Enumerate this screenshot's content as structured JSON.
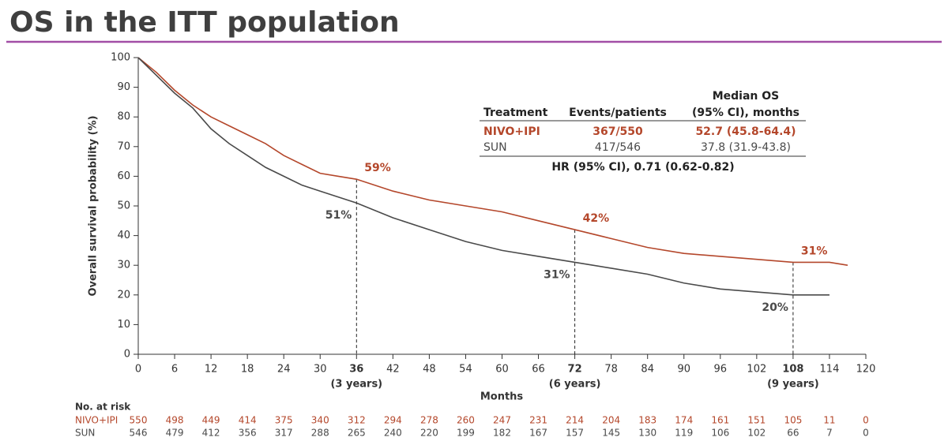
{
  "chart_data": {
    "type": "line",
    "title": "OS in the ITT population",
    "xlabel": "Months",
    "ylabel": "Overall survival probability (%)",
    "x": [
      0,
      3,
      6,
      9,
      12,
      15,
      18,
      21,
      24,
      27,
      30,
      33,
      36,
      42,
      48,
      54,
      60,
      66,
      72,
      78,
      84,
      90,
      96,
      102,
      108,
      114,
      117
    ],
    "series": [
      {
        "name": "NIVO+IPI",
        "color": "#b4472b",
        "values": [
          100,
          95,
          89,
          84,
          80,
          77,
          74,
          71,
          67,
          64,
          61,
          60,
          59,
          55,
          52,
          50,
          48,
          45,
          42,
          39,
          36,
          34,
          33,
          32,
          31,
          31,
          30
        ]
      },
      {
        "name": "SUN",
        "color": "#4a4a4a",
        "values": [
          100,
          94,
          88,
          83,
          76,
          71,
          67,
          63,
          60,
          57,
          55,
          53,
          51,
          46,
          42,
          38,
          35,
          33,
          31,
          29,
          27,
          24,
          22,
          21,
          20,
          20,
          null
        ]
      }
    ],
    "xlim": [
      0,
      120
    ],
    "ylim": [
      0,
      100
    ],
    "xticks": [
      0,
      6,
      12,
      18,
      24,
      30,
      36,
      42,
      48,
      54,
      60,
      66,
      72,
      78,
      84,
      90,
      96,
      102,
      108,
      114,
      120
    ],
    "yticks": [
      0,
      10,
      20,
      30,
      40,
      50,
      60,
      70,
      80,
      90,
      100
    ],
    "reference_lines": [
      {
        "x": 36,
        "label": "(3 years)"
      },
      {
        "x": 72,
        "label": "(6 years)"
      },
      {
        "x": 108,
        "label": "(9 years)"
      }
    ],
    "annotations": [
      {
        "text": "59%",
        "series": 0,
        "x": 36,
        "value": 59
      },
      {
        "text": "51%",
        "series": 1,
        "x": 36,
        "value": 51
      },
      {
        "text": "42%",
        "series": 0,
        "x": 72,
        "value": 42
      },
      {
        "text": "31%",
        "series": 1,
        "x": 72,
        "value": 31
      },
      {
        "text": "31%",
        "series": 0,
        "x": 108,
        "value": 31
      },
      {
        "text": "20%",
        "series": 1,
        "x": 108,
        "value": 20
      }
    ],
    "table": {
      "column_super": "Median OS",
      "columns": [
        "Treatment",
        "Events/patients",
        "(95% CI), months"
      ],
      "rows": [
        [
          "NIVO+IPI",
          "367/550",
          "52.7 (45.8-64.4)"
        ],
        [
          "SUN",
          "417/546",
          "37.8 (31.9-43.8)"
        ]
      ],
      "footer": "HR (95% CI), 0.71 (0.62-0.82)"
    },
    "at_risk": {
      "title": "No. at risk",
      "rows": [
        {
          "name": "NIVO+IPI",
          "values": [
            550,
            498,
            449,
            414,
            375,
            340,
            312,
            294,
            278,
            260,
            247,
            231,
            214,
            204,
            183,
            174,
            161,
            151,
            105,
            11,
            0
          ]
        },
        {
          "name": "SUN",
          "values": [
            546,
            479,
            412,
            356,
            317,
            288,
            265,
            240,
            220,
            199,
            182,
            167,
            157,
            145,
            130,
            119,
            106,
            102,
            66,
            7,
            0
          ]
        }
      ]
    }
  }
}
